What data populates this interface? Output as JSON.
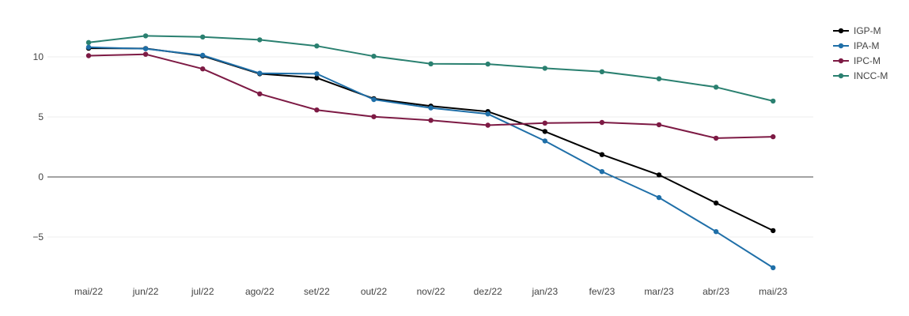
{
  "chart_data": {
    "type": "line",
    "title": "",
    "xlabel": "",
    "ylabel": "",
    "categories": [
      "mai/22",
      "jun/22",
      "jul/22",
      "ago/22",
      "set/22",
      "out/22",
      "nov/22",
      "dez/22",
      "jan/23",
      "fev/23",
      "mar/23",
      "abr/23",
      "mai/23"
    ],
    "yticks": [
      -5,
      0,
      5,
      10
    ],
    "ytick_labels": [
      "−5",
      "0",
      "5",
      "10"
    ],
    "ylim": [
      -8.5,
      13.5
    ],
    "grid": true,
    "legend_position": "top-right",
    "series": [
      {
        "name": "IGP-M",
        "color": "#000000",
        "values": [
          10.72,
          10.7,
          10.08,
          8.59,
          8.25,
          6.52,
          5.9,
          5.45,
          3.79,
          1.86,
          0.17,
          -2.17,
          -4.47
        ]
      },
      {
        "name": "IPA-M",
        "color": "#1f6fa8",
        "values": [
          10.8,
          10.68,
          10.13,
          8.64,
          8.59,
          6.45,
          5.75,
          5.25,
          3.0,
          0.45,
          -1.72,
          -4.55,
          -7.56
        ]
      },
      {
        "name": "IPC-M",
        "color": "#7d1a44",
        "values": [
          10.1,
          10.22,
          9.0,
          6.92,
          5.58,
          5.02,
          4.72,
          4.31,
          4.49,
          4.54,
          4.35,
          3.23,
          3.35
        ]
      },
      {
        "name": "INCC-M",
        "color": "#2a8070",
        "values": [
          11.2,
          11.75,
          11.66,
          11.42,
          10.91,
          10.05,
          9.42,
          9.4,
          9.05,
          8.76,
          8.18,
          7.48,
          6.32
        ]
      }
    ]
  }
}
